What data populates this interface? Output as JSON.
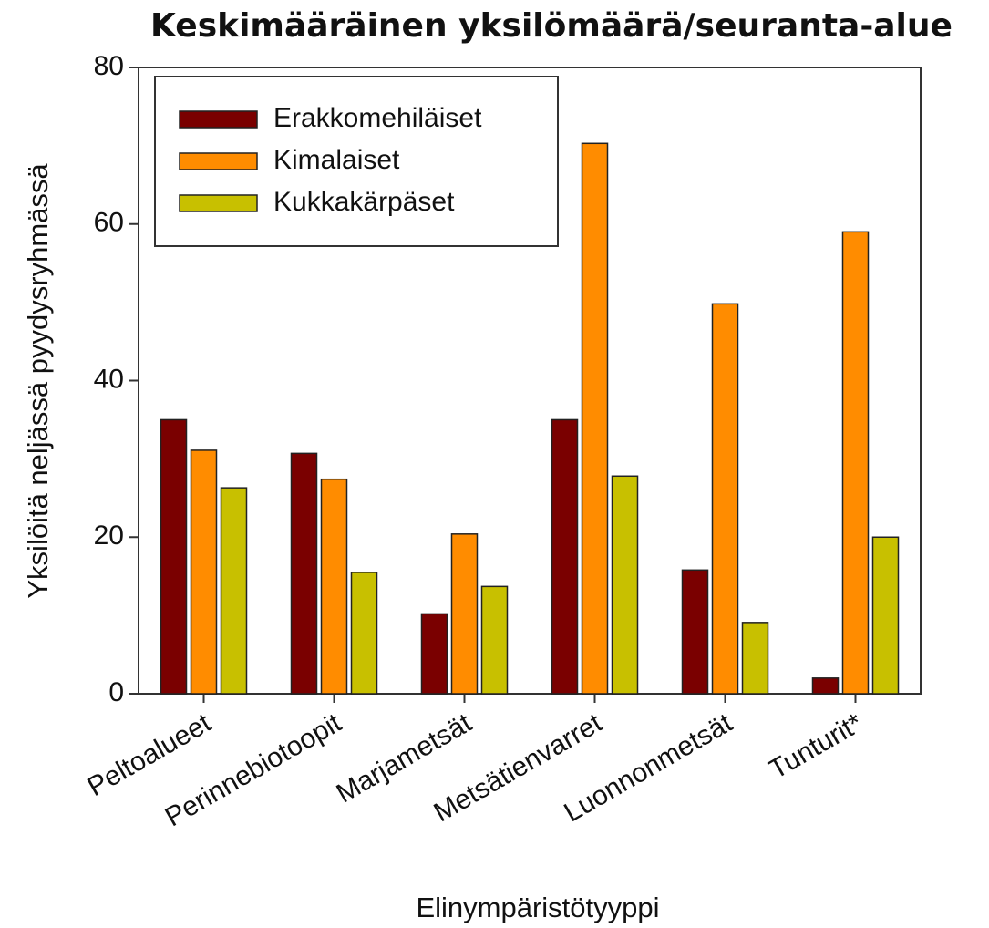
{
  "chart_data": {
    "type": "bar",
    "title": "Keskimääräinen yksilömäärä/seuranta-alue",
    "x_label": "Elinympäristötyyppi",
    "y_label": "Yksilöitä neljässä pyydysryhmässä",
    "categories": [
      "Peltoalueet",
      "Perinnebiotoopit",
      "Marjametsät",
      "Metsätienvarret",
      "Luonnonmetsät",
      "Tunturit*"
    ],
    "series": [
      {
        "name": "Erakkomehiläiset",
        "color": "#7a0000",
        "values": [
          35.0,
          30.7,
          10.2,
          35.0,
          15.8,
          2.0
        ]
      },
      {
        "name": "Kimalaiset",
        "color": "#ff8c00",
        "values": [
          31.1,
          27.4,
          20.4,
          70.3,
          49.8,
          59.0
        ]
      },
      {
        "name": "Kukkakärpäset",
        "color": "#c8c000",
        "values": [
          26.3,
          15.5,
          13.7,
          27.8,
          9.1,
          20.0
        ]
      }
    ],
    "ylim": [
      0,
      80
    ],
    "yticks": [
      0,
      20,
      40,
      60,
      80
    ],
    "legend": "upper left"
  }
}
